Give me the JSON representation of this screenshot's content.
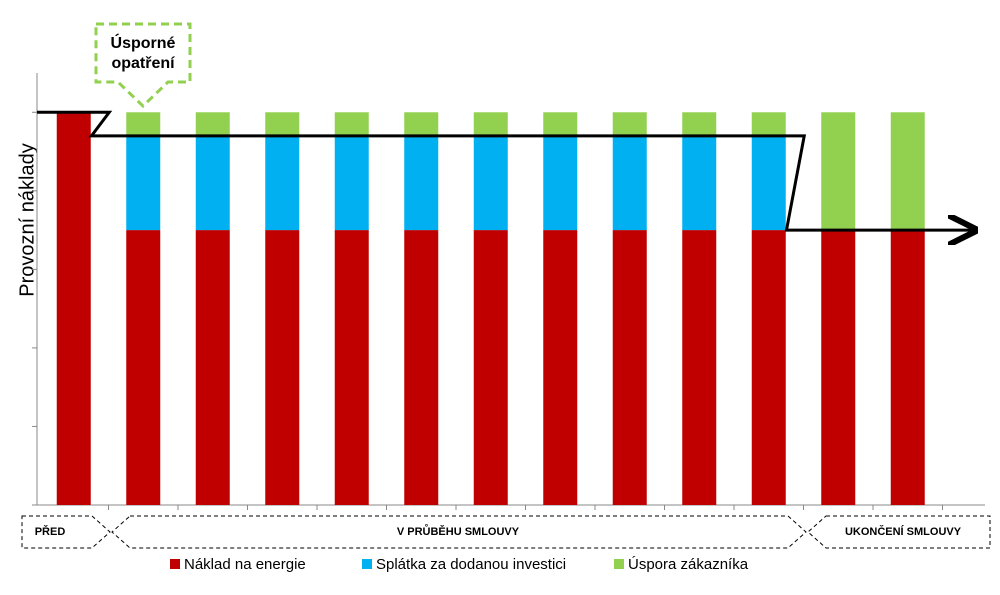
{
  "chart_data": {
    "type": "stacked-bar",
    "y_label": "Provozní náklady",
    "categories": [
      null,
      null,
      null,
      null,
      null,
      null,
      null,
      null,
      null,
      null,
      null,
      null,
      null
    ],
    "series": [
      {
        "name": "Náklad na energie",
        "color": "#c00000",
        "values": [
          5,
          3.5,
          3.5,
          3.5,
          3.5,
          3.5,
          3.5,
          3.5,
          3.5,
          3.5,
          3.5,
          3.5,
          3.5
        ]
      },
      {
        "name": "Splátka za dodanou investici",
        "color": "#00b0f0",
        "values": [
          0,
          1.2,
          1.2,
          1.2,
          1.2,
          1.2,
          1.2,
          1.2,
          1.2,
          1.2,
          1.2,
          0,
          0
        ]
      },
      {
        "name": "Úspora zákazníka",
        "color": "#92d050",
        "values": [
          0,
          0.3,
          0.3,
          0.3,
          0.3,
          0.3,
          0.3,
          0.3,
          0.3,
          0.3,
          0.3,
          1.5,
          1.5
        ]
      }
    ],
    "ylim": [
      0,
      5.5
    ],
    "yticks": [
      0,
      1,
      2,
      3,
      4,
      5
    ],
    "callout": "Úsporné opatření",
    "phases": [
      "PŘED",
      "V PRŮBĚHU SMLOUVY",
      "UKONČENÍ SMLOUVY"
    ]
  }
}
